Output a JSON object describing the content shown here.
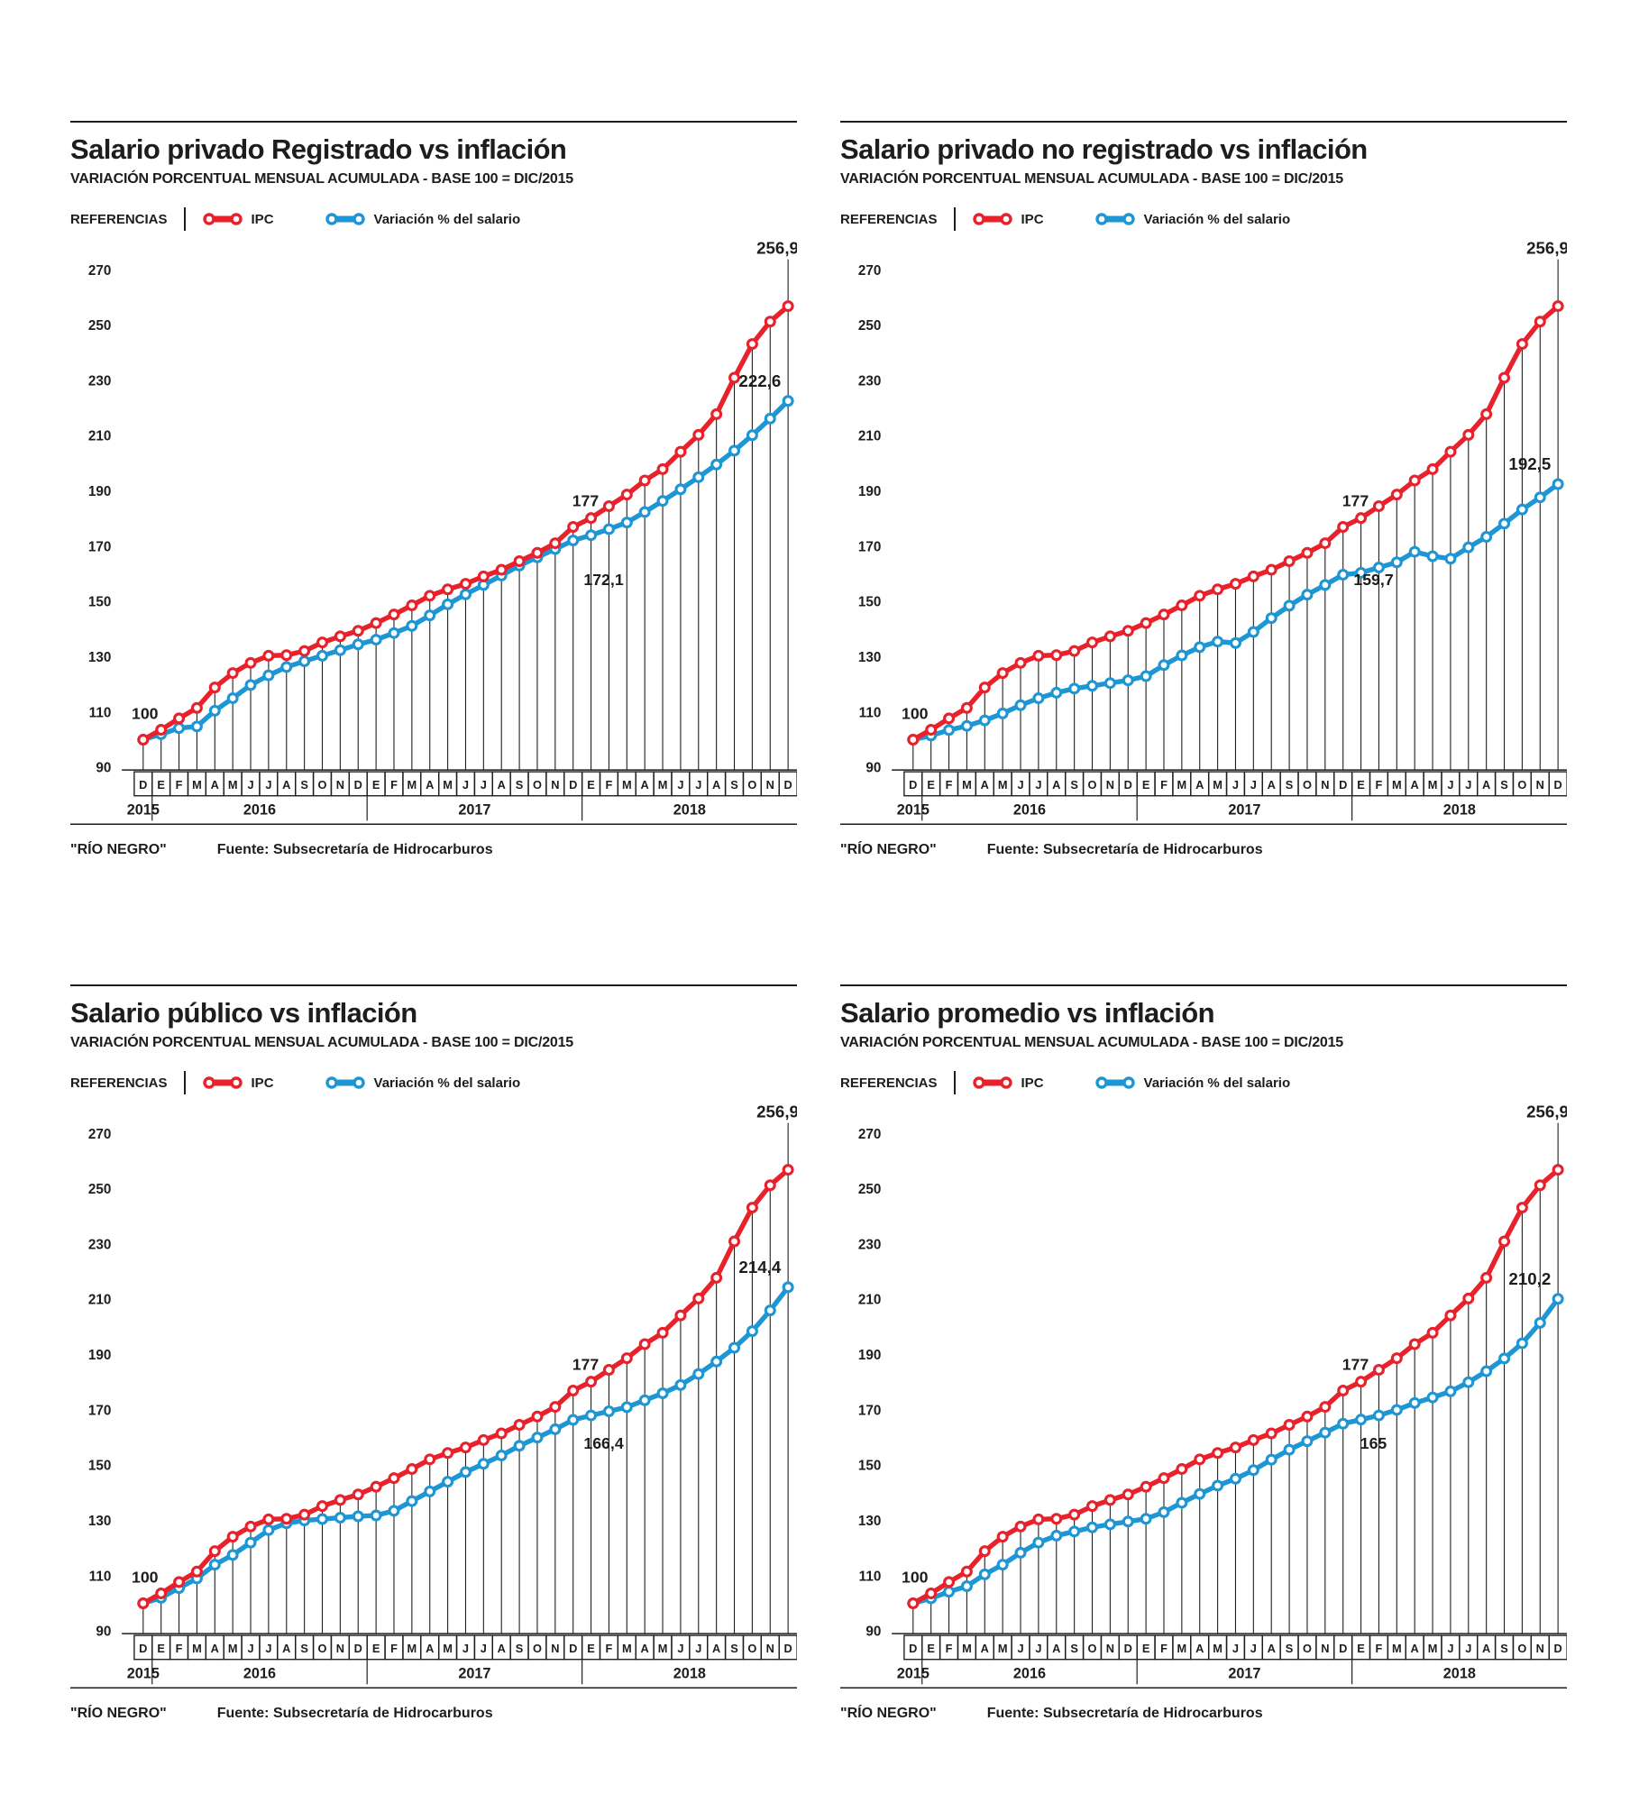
{
  "shared": {
    "subtitle": "VARIACIÓN PORCENTUAL MENSUAL ACUMULADA - BASE 100 = DIC/2015",
    "legend": {
      "references_label": "REFERENCIAS",
      "ipc_label": "IPC",
      "salary_label": "Variación % del salario"
    },
    "colors": {
      "ipc": "#e8212b",
      "salary": "#1e96d3",
      "ink": "#1d1d1b"
    },
    "footer": {
      "credit": "\"RÍO NEGRO\"",
      "source": "Fuente: Subsecretaría de Hidrocarburos"
    },
    "axis": {
      "months": [
        "D",
        "E",
        "F",
        "M",
        "A",
        "M",
        "J",
        "J",
        "A",
        "S",
        "O",
        "N",
        "D",
        "E",
        "F",
        "M",
        "A",
        "M",
        "J",
        "J",
        "A",
        "S",
        "O",
        "N",
        "D",
        "E",
        "F",
        "M",
        "A",
        "M",
        "J",
        "J",
        "A",
        "S",
        "O",
        "N",
        "D"
      ],
      "years": [
        {
          "label": "2015",
          "months": 1
        },
        {
          "label": "2016",
          "months": 12
        },
        {
          "label": "2017",
          "months": 12
        },
        {
          "label": "2018",
          "months": 12
        }
      ],
      "yticks": [
        270,
        250,
        230,
        210,
        190,
        170,
        150,
        130,
        110,
        90
      ]
    }
  },
  "chart_data": [
    {
      "type": "line",
      "title": "Salario privado Registrado vs inflación",
      "ylim": [
        90,
        270
      ],
      "series": [
        {
          "name": "IPC",
          "color": "#e8212b",
          "values": [
            100,
            103.6,
            107.7,
            111.5,
            118.9,
            124.1,
            127.8,
            130.4,
            130.6,
            132.1,
            135.2,
            137.4,
            139.4,
            142.2,
            145.3,
            148.6,
            152.1,
            154.4,
            156.4,
            159.1,
            161.5,
            164.6,
            167.6,
            171.1,
            177,
            180.2,
            184.5,
            188.7,
            193.8,
            197.9,
            204.2,
            210.3,
            217.8,
            231,
            243.2,
            251.3,
            256.9
          ]
        },
        {
          "name": "Variación % del salario",
          "color": "#1e96d3",
          "values": [
            100,
            102,
            104.2,
            104.8,
            110.5,
            115,
            119.8,
            123.3,
            126.3,
            128.4,
            130.4,
            132.4,
            134.5,
            136.2,
            138.6,
            141.2,
            145,
            149,
            152.6,
            156,
            159.4,
            163,
            166,
            169,
            172.1,
            174,
            176.2,
            178.6,
            182.4,
            186.4,
            190.6,
            195,
            199.6,
            204.6,
            210.2,
            216.2,
            222.6
          ]
        }
      ],
      "annotations": {
        "start": "100",
        "ipc_dec2017": "177",
        "salary_dec2017": "172,1",
        "ipc_final": "256,9",
        "salary_final": "222,6"
      }
    },
    {
      "type": "line",
      "title": "Salario privado no registrado vs inflación",
      "ylim": [
        90,
        270
      ],
      "series": [
        {
          "name": "IPC",
          "color": "#e8212b",
          "values": [
            100,
            103.6,
            107.7,
            111.5,
            118.9,
            124.1,
            127.8,
            130.4,
            130.6,
            132.1,
            135.2,
            137.4,
            139.4,
            142.2,
            145.3,
            148.6,
            152.1,
            154.4,
            156.4,
            159.1,
            161.5,
            164.6,
            167.6,
            171.1,
            177,
            180.2,
            184.5,
            188.7,
            193.8,
            197.9,
            204.2,
            210.3,
            217.8,
            231,
            243.2,
            251.3,
            256.9
          ]
        },
        {
          "name": "Variación % del salario",
          "color": "#1e96d3",
          "values": [
            100,
            101.5,
            103.5,
            105,
            107,
            109.5,
            112.5,
            115,
            117,
            118.5,
            119.5,
            120.5,
            121.5,
            123,
            127,
            130.5,
            133.5,
            135.5,
            135,
            139,
            144,
            148.5,
            152.5,
            156,
            159.7,
            160.4,
            162.3,
            164.2,
            168,
            166.4,
            165.5,
            169.6,
            173.4,
            178.2,
            183.3,
            187.7,
            192.5
          ]
        }
      ],
      "annotations": {
        "start": "100",
        "ipc_dec2017": "177",
        "salary_dec2017": "159,7",
        "ipc_final": "256,9",
        "salary_final": "192,5"
      }
    },
    {
      "type": "line",
      "title": "Salario público vs inflación",
      "ylim": [
        90,
        270
      ],
      "series": [
        {
          "name": "IPC",
          "color": "#e8212b",
          "values": [
            100,
            103.6,
            107.7,
            111.5,
            118.9,
            124.1,
            127.8,
            130.4,
            130.6,
            132.1,
            135.2,
            137.4,
            139.4,
            142.2,
            145.3,
            148.6,
            152.1,
            154.4,
            156.4,
            159.1,
            161.5,
            164.6,
            167.6,
            171.1,
            177,
            180.2,
            184.5,
            188.7,
            193.8,
            197.9,
            204.2,
            210.3,
            217.8,
            231,
            243.2,
            251.3,
            256.9
          ]
        },
        {
          "name": "Variación % del salario",
          "color": "#1e96d3",
          "values": [
            100,
            102,
            105.5,
            109,
            114,
            117.5,
            122,
            126.5,
            129,
            130,
            130.5,
            131,
            131.5,
            131.8,
            133.5,
            137,
            140.5,
            144,
            147.5,
            150.5,
            153.5,
            157,
            160,
            163,
            166.4,
            168,
            169.5,
            171,
            173.5,
            176,
            179,
            183,
            187.5,
            192.5,
            198.5,
            206,
            214.4
          ]
        }
      ],
      "annotations": {
        "start": "100",
        "ipc_dec2017": "177",
        "salary_dec2017": "166,4",
        "ipc_final": "256,9",
        "salary_final": "214,4"
      }
    },
    {
      "type": "line",
      "title": "Salario promedio vs inflación",
      "ylim": [
        90,
        270
      ],
      "series": [
        {
          "name": "IPC",
          "color": "#e8212b",
          "values": [
            100,
            103.6,
            107.7,
            111.5,
            118.9,
            124.1,
            127.8,
            130.4,
            130.6,
            132.1,
            135.2,
            137.4,
            139.4,
            142.2,
            145.3,
            148.6,
            152.1,
            154.4,
            156.4,
            159.1,
            161.5,
            164.6,
            167.6,
            171.1,
            177,
            180.2,
            184.5,
            188.7,
            193.8,
            197.9,
            204.2,
            210.3,
            217.8,
            231,
            243.2,
            251.3,
            256.9
          ]
        },
        {
          "name": "Variación % del salario",
          "color": "#1e96d3",
          "values": [
            100,
            101.8,
            104.2,
            106.2,
            110.5,
            114,
            118.3,
            122,
            124.5,
            126,
            127.5,
            128.6,
            129.6,
            130.6,
            133,
            136.4,
            139.6,
            142.6,
            145.1,
            148.2,
            152,
            155.6,
            158.7,
            161.8,
            165,
            166.5,
            168,
            170,
            172.5,
            174.5,
            176.7,
            180,
            184,
            188.6,
            194.1,
            201.5,
            210.2
          ]
        }
      ],
      "annotations": {
        "start": "100",
        "ipc_dec2017": "177",
        "salary_dec2017": "165",
        "ipc_final": "256,9",
        "salary_final": "210,2"
      }
    }
  ]
}
